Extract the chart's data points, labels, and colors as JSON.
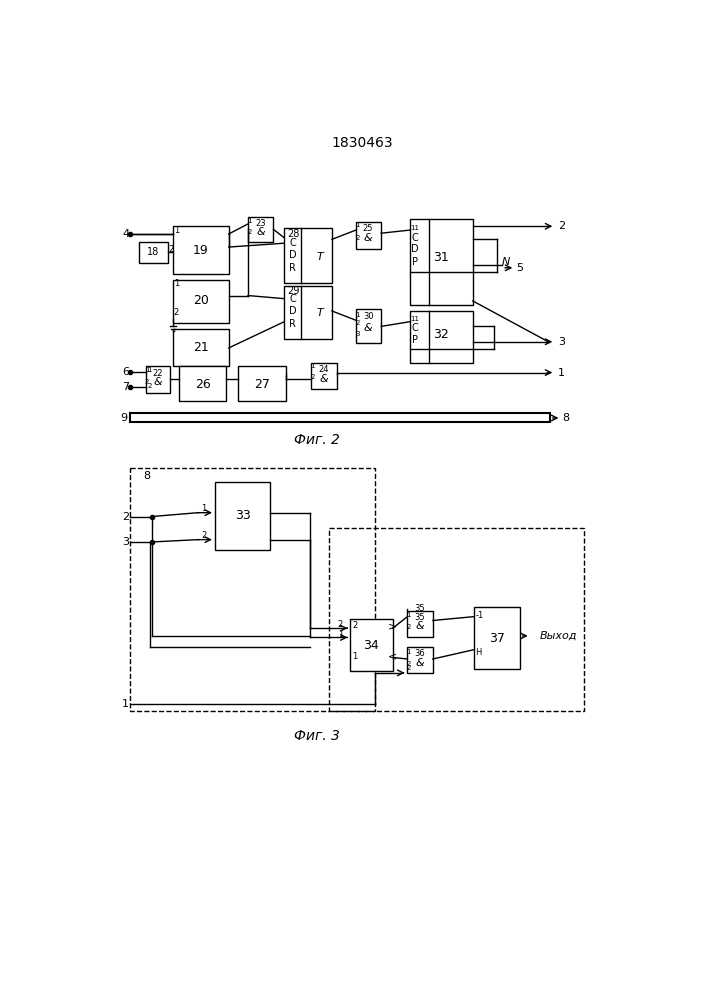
{
  "title": "1830463",
  "fig2_label": "Фиг. 2",
  "fig3_label": "Фиг. 3",
  "vyhod_label": "Выход"
}
